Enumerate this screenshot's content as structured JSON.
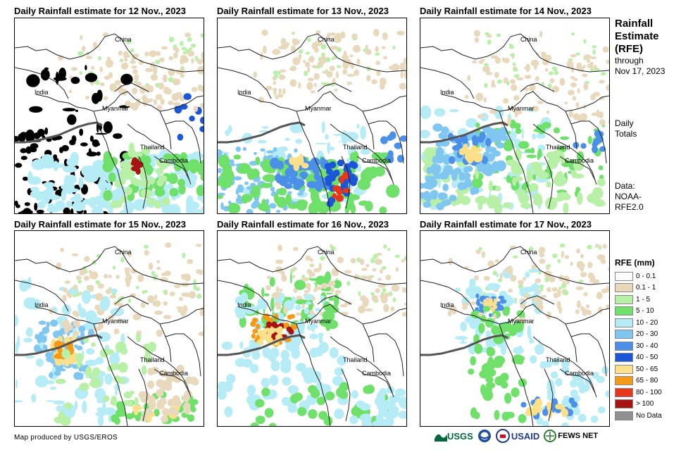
{
  "panels": [
    {
      "title": "Daily Rainfall estimate for 12 Nov., 2023",
      "labels": {
        "china": "China",
        "india": "India",
        "myanmar": "Myanmar",
        "thailand": "Thailand",
        "cambodia": "Cambodia"
      }
    },
    {
      "title": "Daily Rainfall estimate for 13 Nov., 2023",
      "labels": {
        "china": "China",
        "india": "India",
        "myanmar": "Myanmar",
        "thailand": "Thailand",
        "cambodia": "Cambodia"
      }
    },
    {
      "title": "Daily Rainfall estimate for 14 Nov., 2023",
      "labels": {
        "china": "China",
        "india": "India",
        "myanmar": "Myanmar",
        "thailand": "Thailand",
        "cambodia": "Cambodia"
      }
    },
    {
      "title": "Daily Rainfall estimate for 15 Nov., 2023",
      "labels": {
        "china": "China",
        "india": "India",
        "myanmar": "Myanmar",
        "thailand": "Thailand",
        "cambodia": "Cambodia"
      }
    },
    {
      "title": "Daily Rainfall estimate for 16 Nov., 2023",
      "labels": {
        "china": "China",
        "india": "India",
        "myanmar": "Myanmar",
        "thailand": "Thailand",
        "cambodia": "Cambodia"
      }
    },
    {
      "title": "Daily Rainfall estimate for 17 Nov., 2023",
      "labels": {
        "china": "China",
        "india": "India",
        "myanmar": "Myanmar",
        "thailand": "Thailand",
        "cambodia": "Cambodia"
      }
    }
  ],
  "sidebar": {
    "title_line1": "Rainfall",
    "title_line2": "Estimate",
    "title_line3": "(RFE)",
    "through": "through",
    "date": "Nov 17, 2023",
    "daily": "Daily",
    "totals": "Totals",
    "data_label": "Data:",
    "data_source1": "NOAA-",
    "data_source2": "RFE2.0"
  },
  "legend": {
    "title": "RFE (mm)",
    "items": [
      {
        "label": "0 - 0.1",
        "color": "#ffffff"
      },
      {
        "label": "0.1 - 1",
        "color": "#e8d9bd"
      },
      {
        "label": "1 - 5",
        "color": "#b9f0a8"
      },
      {
        "label": "5 - 10",
        "color": "#6fe06a"
      },
      {
        "label": "10 - 20",
        "color": "#b6ecf5"
      },
      {
        "label": "20 - 30",
        "color": "#7fc6f0"
      },
      {
        "label": "30 - 40",
        "color": "#4a90e8"
      },
      {
        "label": "40 - 50",
        "color": "#1b55d8"
      },
      {
        "label": "50 - 65",
        "color": "#fbe08a"
      },
      {
        "label": "65 - 80",
        "color": "#f59a16"
      },
      {
        "label": "80 - 100",
        "color": "#e8361a"
      },
      {
        "label": "> 100",
        "color": "#a81414"
      },
      {
        "label": "No Data",
        "color": "#909090"
      }
    ]
  },
  "footer": {
    "credit": "Map produced by USGS/EROS",
    "logo_usgs": "USGS",
    "logo_usaid": "USAID",
    "logo_fews": "FEWS NET"
  }
}
